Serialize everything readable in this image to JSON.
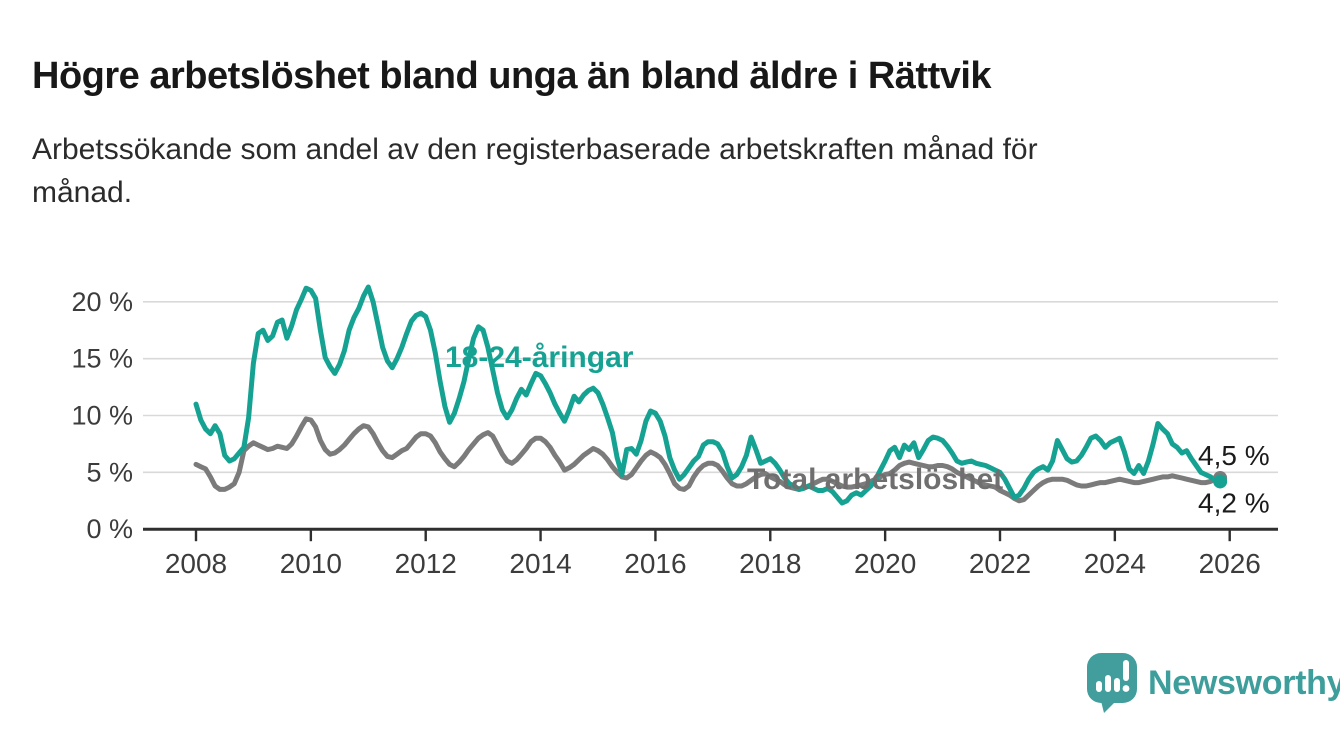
{
  "header": {
    "title": "Högre arbetslöshet bland unga än bland äldre i Rättvik",
    "subtitle_lines": [
      "Arbetssökande som andel av den registerbaserade arbetskraften månad för",
      "månad."
    ]
  },
  "chart_data": {
    "type": "line",
    "title": "Högre arbetslöshet bland unga än bland äldre i Rättvik",
    "subtitle": "Arbetssökande som andel av den registerbaserade arbetskraften månad för månad.",
    "frequency": "monthly",
    "x_start": "2008-01",
    "x_end": "2025-11",
    "grid": true,
    "ylim": [
      0,
      22
    ],
    "yticks": [
      {
        "label": "20 %",
        "value": 20
      },
      {
        "label": "15 %",
        "value": 15
      },
      {
        "label": "10 %",
        "value": 10
      },
      {
        "label": "5 %",
        "value": 5
      },
      {
        "label": "0 %",
        "value": 0
      }
    ],
    "xticks": [
      {
        "label": "2008",
        "month_index": 0
      },
      {
        "label": "2010",
        "month_index": 24
      },
      {
        "label": "2012",
        "month_index": 48
      },
      {
        "label": "2014",
        "month_index": 72
      },
      {
        "label": "2016",
        "month_index": 96
      },
      {
        "label": "2018",
        "month_index": 120
      },
      {
        "label": "2020",
        "month_index": 144
      },
      {
        "label": "2022",
        "month_index": 168
      },
      {
        "label": "2024",
        "month_index": 192
      },
      {
        "label": "2026",
        "month_index": 216
      }
    ],
    "series": [
      {
        "name": "Total arbetslöshet",
        "color": "#7b7b7b",
        "label_color": "#6f6f6f",
        "end_label": "4,5 %",
        "end_value": 4.5,
        "values": [
          5.7,
          5.5,
          5.3,
          4.6,
          3.8,
          3.5,
          3.5,
          3.7,
          4.0,
          5.0,
          6.9,
          7.3,
          7.6,
          7.4,
          7.2,
          7.0,
          7.1,
          7.3,
          7.2,
          7.1,
          7.5,
          8.2,
          9.0,
          9.7,
          9.6,
          9.0,
          7.8,
          7.0,
          6.6,
          6.7,
          7.0,
          7.4,
          7.9,
          8.4,
          8.8,
          9.1,
          9.0,
          8.4,
          7.6,
          6.9,
          6.4,
          6.3,
          6.6,
          6.9,
          7.1,
          7.6,
          8.1,
          8.4,
          8.4,
          8.2,
          7.6,
          6.8,
          6.2,
          5.7,
          5.5,
          5.9,
          6.4,
          7.0,
          7.5,
          8.0,
          8.3,
          8.5,
          8.2,
          7.4,
          6.6,
          6.0,
          5.8,
          6.1,
          6.6,
          7.1,
          7.7,
          8.0,
          8.0,
          7.7,
          7.2,
          6.5,
          5.9,
          5.2,
          5.4,
          5.7,
          6.1,
          6.5,
          6.8,
          7.1,
          6.9,
          6.6,
          6.1,
          5.5,
          5.0,
          4.6,
          4.5,
          4.8,
          5.4,
          6.0,
          6.5,
          6.8,
          6.6,
          6.3,
          5.7,
          4.9,
          4.0,
          3.6,
          3.5,
          3.8,
          4.6,
          5.2,
          5.6,
          5.8,
          5.8,
          5.6,
          5.1,
          4.5,
          4.0,
          3.8,
          3.8,
          4.0,
          4.3,
          4.6,
          4.8,
          4.9,
          4.6,
          4.4,
          4.2,
          3.9,
          3.7,
          3.6,
          3.5,
          3.6,
          3.8,
          4.0,
          4.2,
          4.4,
          4.4,
          4.2,
          4.0,
          3.8,
          3.7,
          3.7,
          3.8,
          3.9,
          4.0,
          4.2,
          4.4,
          4.6,
          4.8,
          4.9,
          5.2,
          5.6,
          5.8,
          5.9,
          5.8,
          5.7,
          5.6,
          5.5,
          5.5,
          5.6,
          5.6,
          5.5,
          5.3,
          5.0,
          4.8,
          4.6,
          4.4,
          4.2,
          4.0,
          3.9,
          3.8,
          3.7,
          3.4,
          3.2,
          3.0,
          2.7,
          2.5,
          2.6,
          3.0,
          3.4,
          3.8,
          4.1,
          4.3,
          4.4,
          4.4,
          4.4,
          4.3,
          4.1,
          3.9,
          3.8,
          3.8,
          3.9,
          4.0,
          4.1,
          4.1,
          4.2,
          4.3,
          4.4,
          4.3,
          4.2,
          4.1,
          4.1,
          4.2,
          4.3,
          4.4,
          4.5,
          4.6,
          4.6,
          4.7,
          4.6,
          4.5,
          4.4,
          4.3,
          4.2,
          4.1,
          4.1,
          4.2,
          4.4,
          4.5
        ]
      },
      {
        "name": "18-24-åringar",
        "color": "#16a292",
        "label_color": "#16a292",
        "end_label": "4,2 %",
        "end_value": 4.2,
        "values": [
          11.0,
          9.6,
          8.8,
          8.4,
          9.1,
          8.4,
          6.5,
          6.0,
          6.2,
          6.7,
          7.2,
          9.8,
          14.6,
          17.2,
          17.5,
          16.6,
          17.0,
          18.2,
          18.4,
          16.8,
          17.9,
          19.3,
          20.2,
          21.2,
          21.0,
          20.3,
          17.5,
          15.1,
          14.3,
          13.7,
          14.5,
          15.7,
          17.5,
          18.6,
          19.4,
          20.5,
          21.3,
          20.0,
          18.0,
          16.0,
          14.8,
          14.2,
          15.0,
          16.0,
          17.2,
          18.3,
          18.8,
          19.0,
          18.7,
          17.5,
          15.5,
          13.0,
          10.8,
          9.4,
          10.2,
          11.5,
          13.0,
          15.0,
          16.8,
          17.8,
          17.5,
          16.0,
          14.0,
          12.0,
          10.5,
          9.8,
          10.5,
          11.5,
          12.3,
          11.8,
          12.8,
          13.7,
          13.5,
          12.8,
          12.0,
          11.0,
          10.2,
          9.5,
          10.5,
          11.7,
          11.2,
          11.8,
          12.2,
          12.4,
          12.0,
          11.0,
          9.8,
          8.5,
          6.3,
          4.8,
          7.0,
          7.1,
          6.6,
          7.8,
          9.5,
          10.4,
          10.2,
          9.5,
          8.2,
          6.3,
          5.2,
          4.4,
          4.8,
          5.4,
          6.0,
          6.4,
          7.4,
          7.7,
          7.7,
          7.5,
          6.8,
          5.5,
          4.5,
          4.8,
          5.5,
          6.5,
          8.1,
          7.0,
          5.8,
          6.0,
          6.2,
          5.8,
          5.2,
          4.5,
          4.0,
          3.8,
          3.5,
          3.6,
          3.8,
          3.6,
          3.4,
          3.4,
          3.6,
          3.3,
          2.8,
          2.3,
          2.5,
          3.0,
          3.2,
          3.0,
          3.4,
          3.8,
          4.4,
          5.2,
          6.0,
          6.9,
          7.2,
          6.3,
          7.4,
          7.0,
          7.6,
          6.3,
          7.0,
          7.8,
          8.1,
          8.0,
          7.8,
          7.3,
          6.7,
          6.0,
          5.8,
          5.9,
          6.0,
          5.8,
          5.7,
          5.6,
          5.4,
          5.2,
          5.0,
          4.4,
          3.6,
          2.8,
          3.0,
          3.6,
          4.4,
          5.0,
          5.3,
          5.5,
          5.2,
          6.0,
          7.8,
          7.0,
          6.2,
          5.9,
          6.0,
          6.5,
          7.2,
          8.0,
          8.2,
          7.8,
          7.2,
          7.6,
          7.8,
          8.0,
          6.8,
          5.3,
          4.9,
          5.6,
          4.9,
          6.0,
          7.5,
          9.3,
          8.8,
          8.4,
          7.5,
          7.2,
          6.7,
          6.9,
          6.2,
          5.6,
          5.0,
          4.8,
          4.6,
          4.3,
          4.2
        ]
      }
    ],
    "legend_position": "inline"
  },
  "footer": {
    "brand": "Newsworthy",
    "brand_color": "#3d9e9c",
    "logo_icon": "speech-bubble-bar-chart-icon"
  }
}
